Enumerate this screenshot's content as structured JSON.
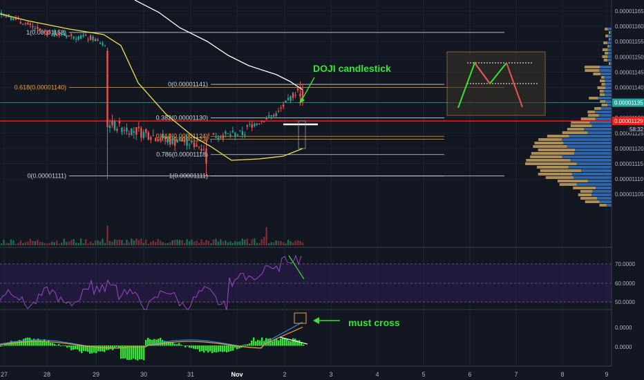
{
  "chart_data": {
    "type": "candlestick",
    "price_axis": {
      "ticks": [
        "0.00001165",
        "0.00001160",
        "0.00001155",
        "0.00001150",
        "0.00001145",
        "0.00001140",
        "0.00001130",
        "0.00001125",
        "0.00001120",
        "0.00001115",
        "0.00001110",
        "0.00001105"
      ],
      "current_price": "0.00001135",
      "countdown": "58:32",
      "red_line_price": "0.00001129"
    },
    "rsi_axis": {
      "ticks": [
        "70.0000",
        "60.0000",
        "50.0000"
      ]
    },
    "macd_axis": {
      "ticks": [
        "0.0000",
        "0.0000"
      ]
    },
    "time_axis": {
      "ticks": [
        "27",
        "28",
        "29",
        "30",
        "31",
        "Nov",
        "2",
        "3",
        "4",
        "5",
        "6",
        "7",
        "8",
        "9"
      ]
    },
    "fib_upper": [
      {
        "label": "1(0.00001158)",
        "price": 1.158e-05,
        "color": "#d1d4dc"
      },
      {
        "label": "0.618(0.00001140)",
        "price": 1.14e-05,
        "color": "#f0a030"
      },
      {
        "label": "0(0.00001111)",
        "price": 1.111e-05,
        "color": "#d1d4dc"
      }
    ],
    "fib_lower": [
      {
        "label": "0(0.00001141)",
        "price": 1.141e-05,
        "color": "#d1d4dc"
      },
      {
        "label": "0.382(0.00001130)",
        "price": 1.13e-05,
        "color": "#d1d4dc"
      },
      {
        "label": "0.618(0.00001124)",
        "price": 1.124e-05,
        "color": "#f0a030"
      },
      {
        "label": "0.65(0.00001123)",
        "price": 1.123e-05,
        "color": "#f0a030"
      },
      {
        "label": "0.786(0.00001118)",
        "price": 1.118e-05,
        "color": "#d1d4dc"
      },
      {
        "label": "1(0.00001111)",
        "price": 1.111e-05,
        "color": "#d1d4dc"
      }
    ],
    "annotations": [
      {
        "text": "DOJI candlestick",
        "color": "#33e633"
      },
      {
        "text": "must cross",
        "color": "#33e633"
      }
    ],
    "colors": {
      "background": "#131722",
      "up": "#26a69a",
      "down": "#ef5350",
      "ma_fast": "#f5e642",
      "ma_slow": "#ffffff",
      "rsi": "#9c47c8",
      "macd_line": "#2d8cf0",
      "signal_line": "#f0a030",
      "histogram": "#33e633",
      "current_line": "#26a69a",
      "red_line": "#ff1a1a"
    }
  }
}
